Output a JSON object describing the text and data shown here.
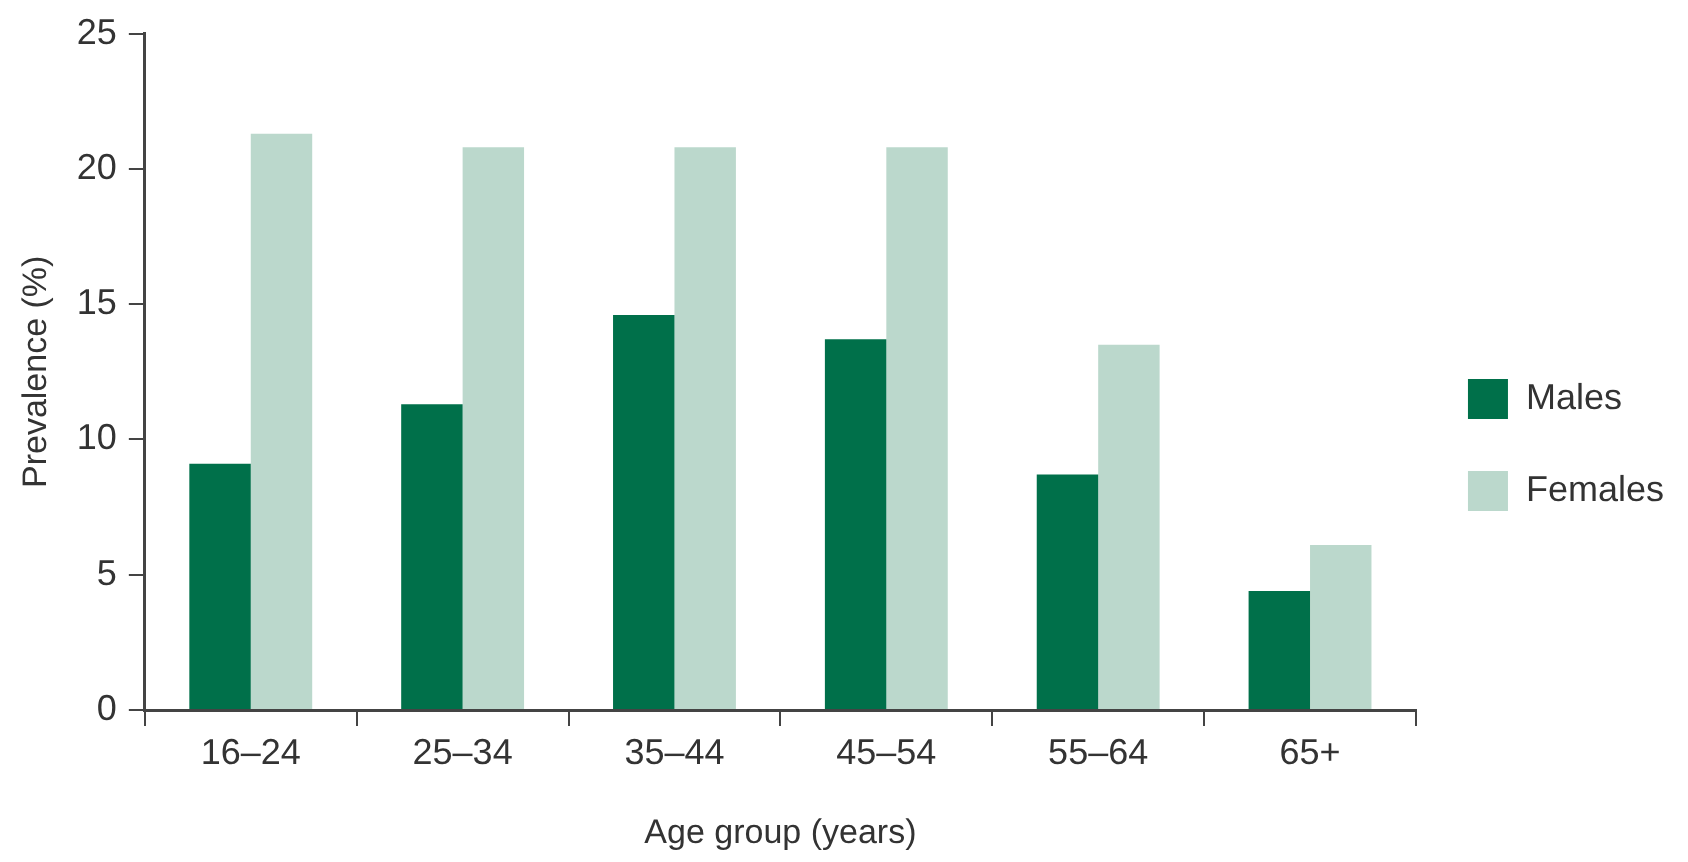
{
  "chart_data": {
    "type": "bar",
    "xlabel": "Age group (years)",
    "ylabel": "Prevalence (%)",
    "categories": [
      "16–24",
      "25–34",
      "35–44",
      "45–54",
      "55–64",
      "65+"
    ],
    "series": [
      {
        "name": "Males",
        "color": "#00704a",
        "values": [
          9.1,
          11.3,
          14.6,
          13.7,
          8.7,
          4.4
        ]
      },
      {
        "name": "Females",
        "color": "#bbd8cc",
        "values": [
          21.3,
          20.8,
          20.8,
          20.8,
          13.5,
          6.1
        ]
      }
    ],
    "ylim": [
      0,
      25
    ],
    "yticks": [
      0,
      5,
      10,
      15,
      20,
      25
    ],
    "grid": false,
    "legend": "right"
  }
}
